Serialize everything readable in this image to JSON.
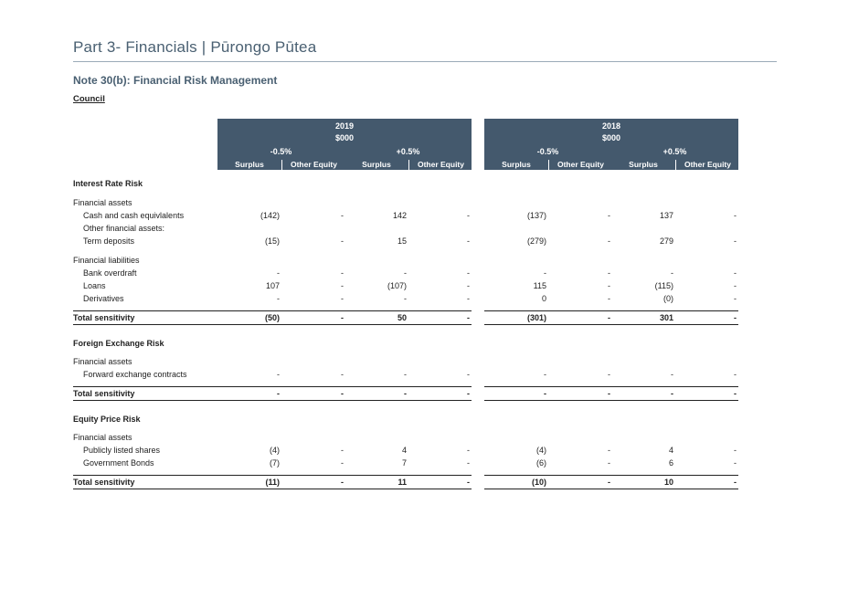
{
  "page": {
    "title": "Part 3- Financials | Pūrongo Pūtea"
  },
  "note": {
    "title": "Note 30(b):  Financial Risk Management",
    "entity": "Council"
  },
  "header": {
    "years": [
      {
        "year": "2019",
        "unit": "$000",
        "changes": [
          "-0.5%",
          "+0.5%"
        ]
      },
      {
        "year": "2018",
        "unit": "$000",
        "changes": [
          "-0.5%",
          "+0.5%"
        ]
      }
    ],
    "columns": [
      "Surplus",
      "Other Equity",
      "Surplus",
      "Other Equity"
    ]
  },
  "rows": [
    {
      "type": "section",
      "label": "Interest Rate Risk",
      "values": []
    },
    {
      "type": "sub",
      "label": "Financial assets",
      "values": []
    },
    {
      "type": "item",
      "label": "Cash and cash equivlalents",
      "values": [
        "(142)",
        "-",
        "142",
        "-",
        "(137)",
        "-",
        "137",
        "-"
      ]
    },
    {
      "type": "item",
      "label": "Other financial assets:",
      "values": []
    },
    {
      "type": "item",
      "label": "Term deposits",
      "values": [
        "(15)",
        "-",
        "15",
        "-",
        "(279)",
        "-",
        "279",
        "-"
      ]
    },
    {
      "type": "sub",
      "label": "Financial liabilities",
      "values": []
    },
    {
      "type": "item",
      "label": "Bank overdraft",
      "values": [
        "-",
        "-",
        "-",
        "-",
        "-",
        "-",
        "-",
        "-"
      ]
    },
    {
      "type": "item",
      "label": "Loans",
      "values": [
        "107",
        "-",
        "(107)",
        "-",
        "115",
        "-",
        "(115)",
        "-"
      ]
    },
    {
      "type": "item",
      "label": "Derivatives",
      "values": [
        "-",
        "-",
        "-",
        "-",
        "0",
        "-",
        "(0)",
        "-"
      ]
    },
    {
      "type": "total",
      "label": "Total sensitivity",
      "values": [
        "(50)",
        "-",
        "50",
        "-",
        "(301)",
        "-",
        "301",
        "-"
      ]
    },
    {
      "type": "section",
      "label": "Foreign Exchange Risk",
      "values": []
    },
    {
      "type": "sub",
      "label": "Financial assets",
      "values": []
    },
    {
      "type": "item",
      "label": "Forward exchange contracts",
      "values": [
        "-",
        "-",
        "-",
        "-",
        "-",
        "-",
        "-",
        "-"
      ]
    },
    {
      "type": "total",
      "label": "Total sensitivity",
      "values": [
        "-",
        "-",
        "-",
        "-",
        "-",
        "-",
        "-",
        "-"
      ]
    },
    {
      "type": "section",
      "label": "Equity Price Risk",
      "values": []
    },
    {
      "type": "sub",
      "label": "Financial assets",
      "values": []
    },
    {
      "type": "item",
      "label": "Publicly listed shares",
      "values": [
        "(4)",
        "-",
        "4",
        "-",
        "(4)",
        "-",
        "4",
        "-"
      ]
    },
    {
      "type": "item",
      "label": "Government Bonds",
      "values": [
        "(7)",
        "-",
        "7",
        "-",
        "(6)",
        "-",
        "6",
        "-"
      ]
    },
    {
      "type": "total",
      "label": "Total sensitivity",
      "values": [
        "(11)",
        "-",
        "11",
        "-",
        "(10)",
        "-",
        "10",
        "-"
      ]
    }
  ]
}
